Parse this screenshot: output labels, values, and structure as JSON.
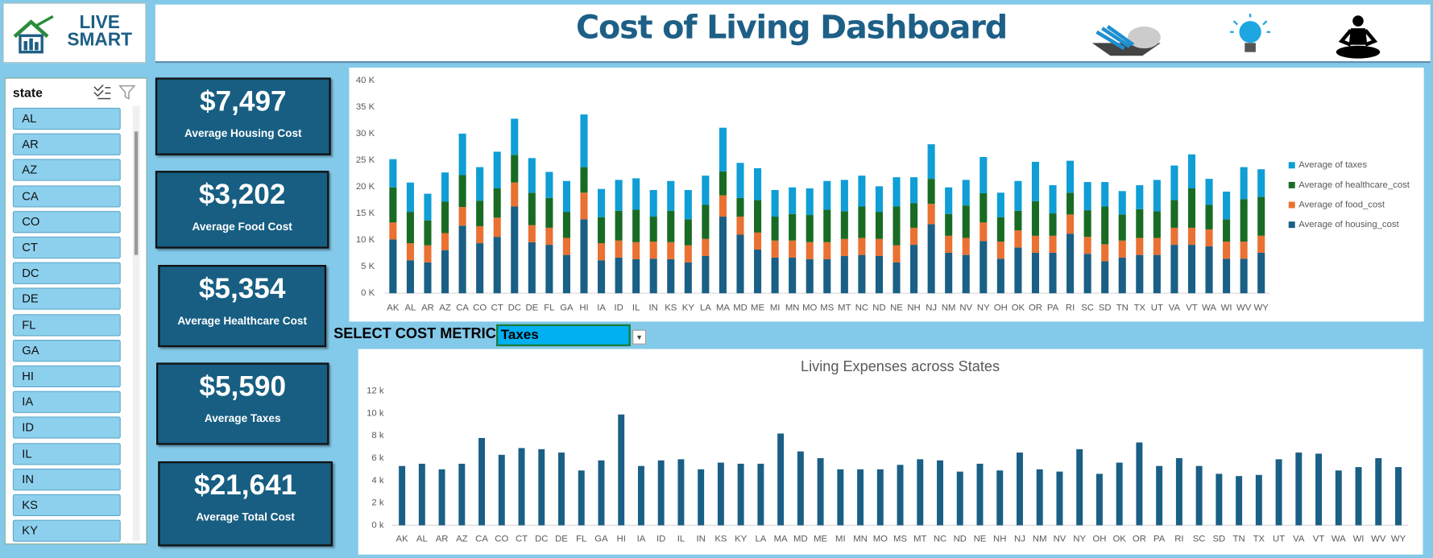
{
  "header": {
    "logo": "LIVE SMART",
    "title": "Cost of Living Dashboard"
  },
  "slicer": {
    "title": "state",
    "items": [
      "AL",
      "AR",
      "AZ",
      "CA",
      "CO",
      "CT",
      "DC",
      "DE",
      "FL",
      "GA",
      "HI",
      "IA",
      "ID",
      "IL",
      "IN",
      "KS",
      "KY"
    ]
  },
  "kpis": [
    {
      "value": "$7,497",
      "label": "Average Housing Cost"
    },
    {
      "value": "$3,202",
      "label": "Average Food Cost"
    },
    {
      "value": "$5,354",
      "label": "Average Healthcare Cost"
    },
    {
      "value": "$5,590",
      "label": "Average Taxes"
    },
    {
      "value": "$21,641",
      "label": "Average Total Cost"
    }
  ],
  "selector": {
    "label": "SELECT COST METRIC",
    "value": "Taxes"
  },
  "chart_data": [
    {
      "type": "bar",
      "stacked": true,
      "legend": "right",
      "categories": [
        "AK",
        "AL",
        "AR",
        "AZ",
        "CA",
        "CO",
        "CT",
        "DC",
        "DE",
        "FL",
        "GA",
        "HI",
        "IA",
        "ID",
        "IL",
        "IN",
        "KS",
        "KY",
        "LA",
        "MA",
        "MD",
        "ME",
        "MI",
        "MN",
        "MO",
        "MS",
        "MT",
        "NC",
        "ND",
        "NE",
        "NH",
        "NJ",
        "NM",
        "NV",
        "NY",
        "OH",
        "OK",
        "OR",
        "PA",
        "RI",
        "SC",
        "SD",
        "TN",
        "TX",
        "UT",
        "VA",
        "VT",
        "WA",
        "WI",
        "WV",
        "WY"
      ],
      "series": [
        {
          "name": "Average of housing_cost",
          "color": "#1a5f85",
          "values": [
            10100,
            6200,
            5800,
            8100,
            12700,
            9400,
            10600,
            16300,
            9600,
            9100,
            7200,
            13900,
            6200,
            6700,
            6400,
            6500,
            6400,
            5800,
            7000,
            14400,
            11000,
            8200,
            6700,
            6700,
            6400,
            6400,
            7000,
            7200,
            7000,
            5800,
            9100,
            13000,
            7600,
            7200,
            9800,
            6500,
            8600,
            7600,
            7600,
            11200,
            7400,
            6000,
            6700,
            7200,
            7200,
            9100,
            9100,
            8800,
            6500,
            6500,
            7600
          ]
        },
        {
          "name": "Average of food_cost",
          "color": "#e97132",
          "values": [
            3200,
            3200,
            3200,
            3200,
            3500,
            3200,
            3600,
            4500,
            3200,
            3200,
            3200,
            5000,
            3200,
            3200,
            3200,
            3200,
            3200,
            3200,
            3200,
            4000,
            3400,
            3200,
            3200,
            3200,
            3200,
            3200,
            3200,
            3200,
            3200,
            3200,
            3200,
            3800,
            3200,
            3200,
            3500,
            3200,
            3200,
            3200,
            3200,
            3600,
            3200,
            3200,
            3200,
            3200,
            3200,
            3200,
            3200,
            3200,
            3200,
            3200,
            3200
          ]
        },
        {
          "name": "Average of healthcare_cost",
          "color": "#196b24",
          "values": [
            6600,
            5900,
            4700,
            5900,
            6000,
            4800,
            5500,
            5200,
            6100,
            5600,
            4900,
            4800,
            4900,
            5600,
            6100,
            4700,
            5900,
            4900,
            6400,
            4500,
            3500,
            6100,
            4500,
            5000,
            5100,
            6100,
            5200,
            5900,
            5100,
            7300,
            4600,
            4700,
            4100,
            6100,
            5500,
            4600,
            3700,
            6500,
            4200,
            4100,
            5000,
            7100,
            4900,
            5400,
            5000,
            5200,
            7400,
            4600,
            4200,
            8000,
            7300
          ]
        },
        {
          "name": "Average of taxes",
          "color": "#0f9ed5",
          "values": [
            5300,
            5500,
            5000,
            5500,
            7800,
            6300,
            6900,
            6800,
            6500,
            4900,
            5800,
            9900,
            5300,
            5800,
            5900,
            5000,
            5600,
            5500,
            5500,
            8200,
            6600,
            6000,
            5000,
            5000,
            5000,
            5400,
            5900,
            5800,
            4800,
            5500,
            4900,
            6500,
            5000,
            4800,
            6800,
            4600,
            5600,
            7400,
            5300,
            6000,
            5300,
            4600,
            4400,
            4500,
            5900,
            6500,
            6400,
            4900,
            5200,
            6000,
            5200
          ]
        }
      ],
      "ylim": [
        0,
        40000
      ],
      "yticks": [
        {
          "value": 0,
          "label": "0 K"
        },
        {
          "value": 5000,
          "label": "5 K"
        },
        {
          "value": 10000,
          "label": "10 K"
        },
        {
          "value": 15000,
          "label": "15 K"
        },
        {
          "value": 20000,
          "label": "20 K"
        },
        {
          "value": 25000,
          "label": "25 K"
        },
        {
          "value": 30000,
          "label": "30 K"
        },
        {
          "value": 35000,
          "label": "35 K"
        },
        {
          "value": 40000,
          "label": "40 K"
        }
      ]
    },
    {
      "type": "bar",
      "title": "Living Expenses across States",
      "color": "#1a5f85",
      "categories": [
        "AK",
        "AL",
        "AR",
        "AZ",
        "CA",
        "CO",
        "CT",
        "DC",
        "DE",
        "FL",
        "GA",
        "HI",
        "IA",
        "ID",
        "IL",
        "IN",
        "KS",
        "KY",
        "LA",
        "MA",
        "MD",
        "ME",
        "MI",
        "MN",
        "MO",
        "MS",
        "MT",
        "NC",
        "ND",
        "NE",
        "NH",
        "NJ",
        "NM",
        "NV",
        "NY",
        "OH",
        "OK",
        "OR",
        "PA",
        "RI",
        "SC",
        "SD",
        "TN",
        "TX",
        "UT",
        "VA",
        "VT",
        "WA",
        "WI",
        "WV",
        "WY"
      ],
      "values": [
        5300,
        5500,
        5000,
        5500,
        7800,
        6300,
        6900,
        6800,
        6500,
        4900,
        5800,
        9900,
        5300,
        5800,
        5900,
        5000,
        5600,
        5500,
        5500,
        8200,
        6600,
        6000,
        5000,
        5000,
        5000,
        5400,
        5900,
        5800,
        4800,
        5500,
        4900,
        6500,
        5000,
        4800,
        6800,
        4600,
        5600,
        7400,
        5300,
        6000,
        5300,
        4600,
        4400,
        4500,
        5900,
        6500,
        6400,
        4900,
        5200,
        6000,
        5200
      ],
      "ylim": [
        0,
        12000
      ],
      "yticks": [
        {
          "value": 0,
          "label": "0 k"
        },
        {
          "value": 2000,
          "label": "2 k"
        },
        {
          "value": 4000,
          "label": "4 k"
        },
        {
          "value": 6000,
          "label": "6 k"
        },
        {
          "value": 8000,
          "label": "8 k"
        },
        {
          "value": 10000,
          "label": "10 k"
        },
        {
          "value": 12000,
          "label": "12 k"
        }
      ]
    }
  ]
}
